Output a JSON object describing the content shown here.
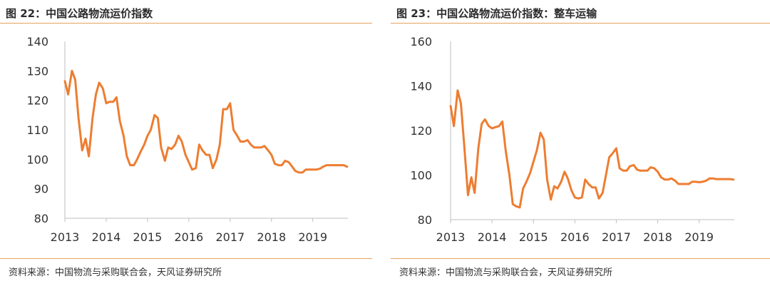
{
  "charts": [
    {
      "title": "图 22：中国公路物流运价指数",
      "source": "资料来源：中国物流与采购联合会，天风证券研究所",
      "chart_data": {
        "type": "line",
        "title": "",
        "xlabel": "",
        "ylabel": "",
        "xlim": [
          2013,
          2019.85
        ],
        "ylim": [
          80,
          140
        ],
        "yticks": [
          80,
          90,
          100,
          110,
          120,
          130,
          140
        ],
        "xticks": [
          2013,
          2014,
          2015,
          2016,
          2017,
          2018,
          2019
        ],
        "grid": false,
        "line_color": "#ed7d31",
        "series": [
          {
            "x": [
              2013.0,
              2013.08,
              2013.17,
              2013.25,
              2013.33,
              2013.42,
              2013.5,
              2013.58,
              2013.67,
              2013.75,
              2013.83,
              2013.92,
              2014.0,
              2014.08,
              2014.17,
              2014.25,
              2014.33,
              2014.42,
              2014.5,
              2014.58,
              2014.67,
              2014.75,
              2014.83,
              2014.92,
              2015.0,
              2015.08,
              2015.17,
              2015.25,
              2015.33,
              2015.42,
              2015.5,
              2015.58,
              2015.67,
              2015.75,
              2015.83,
              2015.92,
              2016.0,
              2016.08,
              2016.17,
              2016.25,
              2016.33,
              2016.42,
              2016.5,
              2016.58,
              2016.67,
              2016.75,
              2016.83,
              2016.92,
              2017.0,
              2017.08,
              2017.17,
              2017.25,
              2017.33,
              2017.42,
              2017.5,
              2017.58,
              2017.67,
              2017.75,
              2017.83,
              2017.92,
              2018.0,
              2018.08,
              2018.17,
              2018.25,
              2018.33,
              2018.42,
              2018.5,
              2018.58,
              2018.67,
              2018.75,
              2018.83,
              2018.92,
              2019.0,
              2019.08,
              2019.17,
              2019.25,
              2019.33,
              2019.42,
              2019.5,
              2019.58,
              2019.67,
              2019.75,
              2019.83
            ],
            "y": [
              126.5,
              122,
              130,
              127,
              114,
              103,
              107,
              101,
              114,
              122,
              126,
              124,
              119,
              119.5,
              119.5,
              121,
              113,
              108,
              101,
              98,
              98,
              100,
              102.5,
              105,
              108,
              110,
              115,
              114,
              104,
              99.5,
              104,
              103.5,
              105,
              108,
              106,
              101.5,
              99,
              96.5,
              97,
              105,
              103,
              101.5,
              101.5,
              97,
              100,
              105,
              117,
              117,
              119,
              110,
              108,
              106,
              106,
              106.5,
              105,
              104,
              104,
              104,
              104.5,
              103,
              101.5,
              98.5,
              98,
              98,
              99.5,
              99,
              97.5,
              96,
              95.5,
              95.5,
              96.5,
              96.5,
              96.5,
              96.5,
              96.8,
              97.5,
              98,
              98,
              98,
              98,
              98,
              98,
              97.5
            ]
          }
        ]
      }
    },
    {
      "title": "图 23：中国公路物流运价指数：整车运输",
      "source": "资料来源：中国物流与采购联合会，天风证券研究所",
      "chart_data": {
        "type": "line",
        "title": "",
        "xlabel": "",
        "ylabel": "",
        "xlim": [
          2013,
          2019.85
        ],
        "ylim": [
          80,
          160
        ],
        "yticks": [
          80,
          100,
          120,
          140,
          160
        ],
        "xticks": [
          2013,
          2014,
          2015,
          2016,
          2017,
          2018,
          2019
        ],
        "grid": false,
        "line_color": "#ed7d31",
        "series": [
          {
            "x": [
              2013.0,
              2013.08,
              2013.17,
              2013.25,
              2013.33,
              2013.42,
              2013.5,
              2013.58,
              2013.67,
              2013.75,
              2013.83,
              2013.92,
              2014.0,
              2014.08,
              2014.17,
              2014.25,
              2014.33,
              2014.42,
              2014.5,
              2014.58,
              2014.67,
              2014.75,
              2014.83,
              2014.92,
              2015.0,
              2015.08,
              2015.17,
              2015.25,
              2015.33,
              2015.42,
              2015.5,
              2015.58,
              2015.67,
              2015.75,
              2015.83,
              2015.92,
              2016.0,
              2016.08,
              2016.17,
              2016.25,
              2016.33,
              2016.42,
              2016.5,
              2016.58,
              2016.67,
              2016.75,
              2016.83,
              2016.92,
              2017.0,
              2017.08,
              2017.17,
              2017.25,
              2017.33,
              2017.42,
              2017.5,
              2017.58,
              2017.67,
              2017.75,
              2017.83,
              2017.92,
              2018.0,
              2018.08,
              2018.17,
              2018.25,
              2018.33,
              2018.42,
              2018.5,
              2018.58,
              2018.67,
              2018.75,
              2018.83,
              2018.92,
              2019.0,
              2019.08,
              2019.17,
              2019.25,
              2019.33,
              2019.42,
              2019.5,
              2019.58,
              2019.67,
              2019.75,
              2019.83
            ],
            "y": [
              131,
              122,
              138,
              132,
              113,
              91,
              99,
              92,
              112,
              123,
              125,
              122,
              121,
              121.5,
              122,
              124,
              111,
              100,
              87,
              86,
              85.5,
              94,
              97,
              101,
              106,
              111,
              119,
              116,
              98,
              89,
              95,
              94,
              97,
              101.5,
              98.5,
              93,
              90,
              89.5,
              90,
              98,
              96,
              94.5,
              94.5,
              89.5,
              92,
              100,
              108,
              110,
              112,
              103,
              102,
              102,
              104,
              104.5,
              102.5,
              102,
              102,
              102,
              103.5,
              103,
              101.5,
              99,
              98,
              98,
              98.5,
              97.5,
              96,
              96,
              96,
              96,
              97,
              97,
              96.8,
              97,
              97.5,
              98.5,
              98.5,
              98.2,
              98.2,
              98.2,
              98.2,
              98.2,
              98.0
            ]
          }
        ]
      }
    }
  ]
}
